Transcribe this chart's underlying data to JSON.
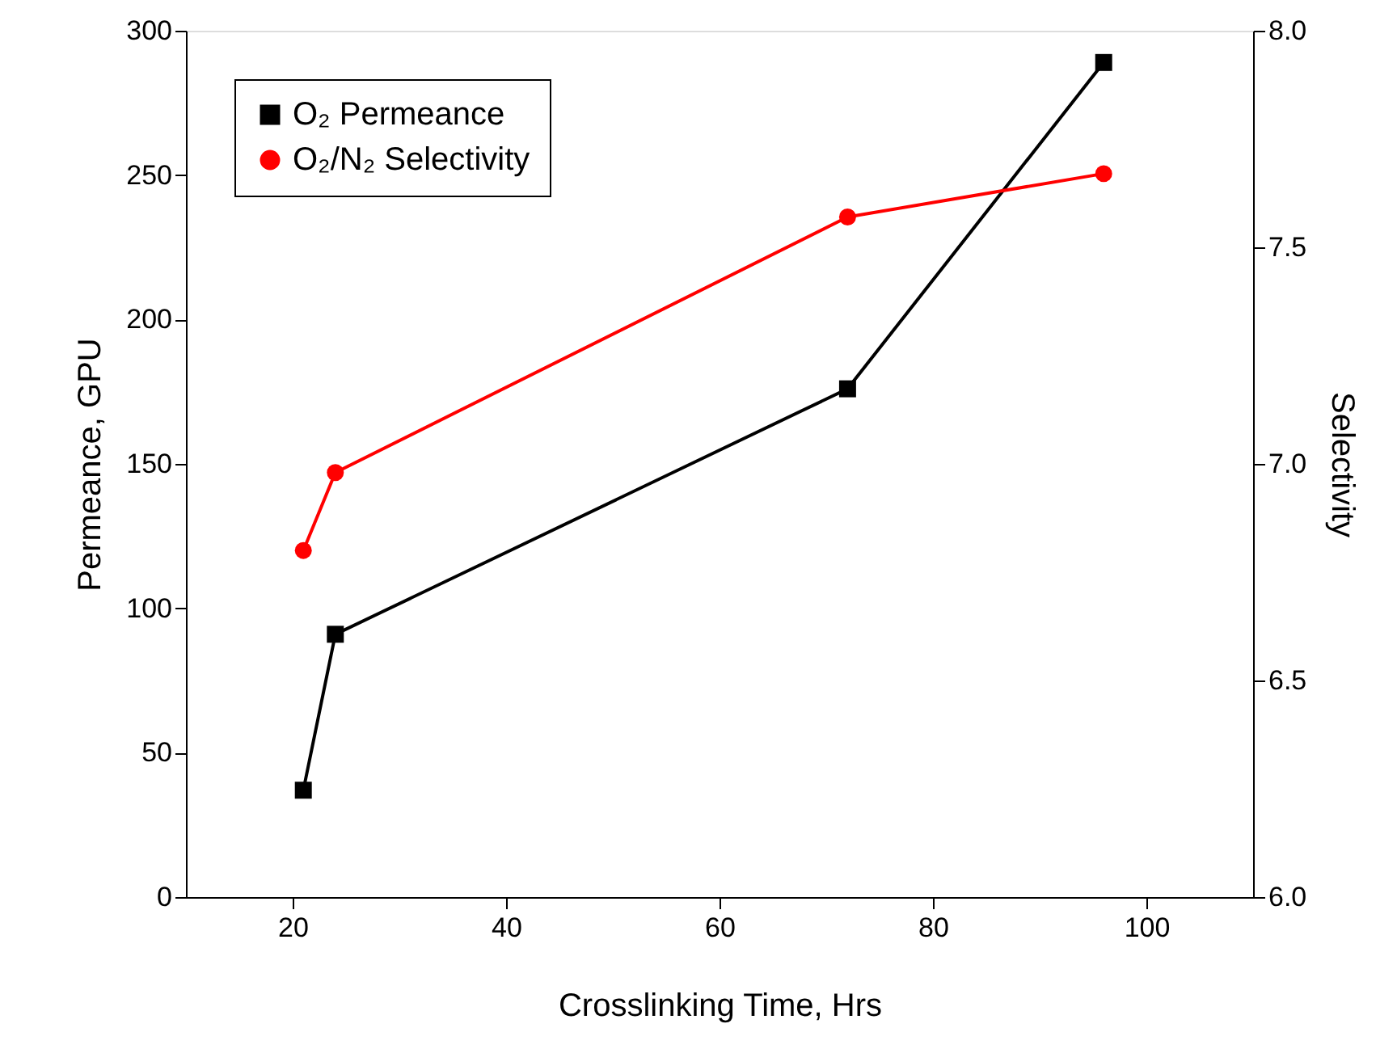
{
  "chart_data": {
    "type": "line",
    "xlabel": "Crosslinking Time, Hrs",
    "ylabel": "Permeance, GPU",
    "y2label": "Selectivity",
    "x": [
      21,
      24,
      72,
      96
    ],
    "series": [
      {
        "name": "O₂ Permeance",
        "color": "#000000",
        "marker": "square",
        "values": [
          37,
          91,
          176,
          289
        ]
      },
      {
        "name": "O₂/N₂ Selectivity",
        "color": "#ff0000",
        "marker": "circle",
        "axis": "y2",
        "values": [
          6.8,
          6.98,
          7.57,
          7.67
        ]
      }
    ],
    "xlim": [
      10,
      110
    ],
    "xticks": [
      20,
      40,
      60,
      80,
      100
    ],
    "ylim": [
      0,
      300
    ],
    "yticks": [
      0,
      50,
      100,
      150,
      200,
      250,
      300
    ],
    "y2lim": [
      6.0,
      8.0
    ],
    "y2ticks": [
      {
        "value": 6,
        "label": "6.0"
      },
      6.5,
      {
        "value": 7,
        "label": "7.0"
      },
      7.5,
      {
        "value": 8,
        "label": "8.0"
      }
    ],
    "grid": false,
    "legend": "top left",
    "line_style": "solid"
  }
}
